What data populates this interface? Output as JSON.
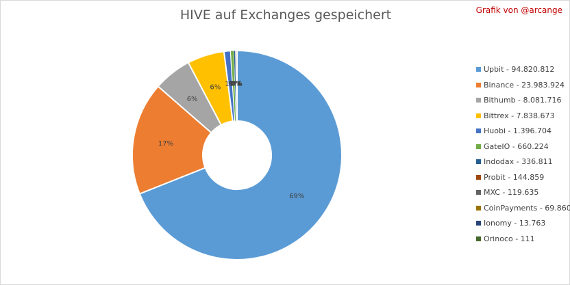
{
  "credit": "Grafik von @arcange",
  "chart_data": {
    "type": "pie",
    "donut": true,
    "title": "HIVE auf Exchanges gespeichert",
    "legend_position": "right",
    "slices": [
      {
        "name": "Upbit",
        "value": 94820812,
        "value_label": "94.820.812",
        "label": "69%",
        "color": "#5b9bd5"
      },
      {
        "name": "Binance",
        "value": 23983924,
        "value_label": "23.983.924",
        "label": "17%",
        "color": "#ed7d31"
      },
      {
        "name": "Bithumb",
        "value": 8081716,
        "value_label": "8.081.716",
        "label": "6%",
        "color": "#a5a5a5"
      },
      {
        "name": "Bittrex",
        "value": 7838673,
        "value_label": "7.838.673",
        "label": "6%",
        "color": "#ffc000"
      },
      {
        "name": "Huobi",
        "value": 1396704,
        "value_label": "1.396.704",
        "label": "1%",
        "color": "#4472c4"
      },
      {
        "name": "GateIO",
        "value": 660224,
        "value_label": "660.224",
        "label": "0%",
        "color": "#70ad47"
      },
      {
        "name": "Indodax",
        "value": 336811,
        "value_label": "336.811",
        "label": "0%",
        "color": "#255e91"
      },
      {
        "name": "Probit",
        "value": 144859,
        "value_label": "144.859",
        "label": "0%",
        "color": "#9e480e"
      },
      {
        "name": "MXC",
        "value": 119635,
        "value_label": "119.635",
        "label": "0%",
        "color": "#636363"
      },
      {
        "name": "CoinPayments",
        "value": 69860,
        "value_label": "69.860",
        "label": "0%",
        "color": "#997300"
      },
      {
        "name": "Ionomy",
        "value": 13763,
        "value_label": "13.763",
        "label": "0%",
        "color": "#264478"
      },
      {
        "name": "Orinoco",
        "value": 111,
        "value_label": "111",
        "label": "0%",
        "color": "#43682b"
      }
    ]
  }
}
